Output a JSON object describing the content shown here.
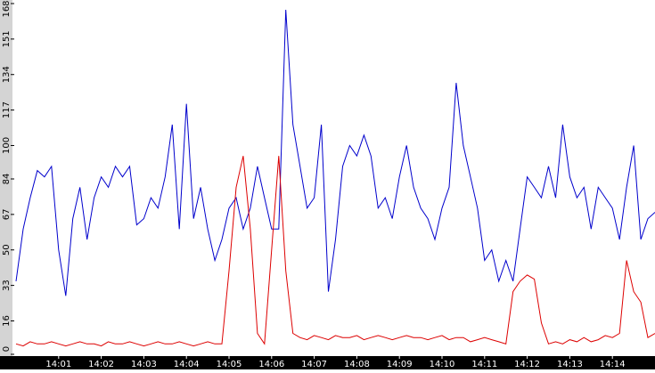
{
  "chart_data": {
    "type": "line",
    "categories": [
      null,
      null,
      null,
      null,
      null,
      null,
      "14:01",
      null,
      null,
      null,
      null,
      null,
      "14:02",
      null,
      null,
      null,
      null,
      null,
      "14:03",
      null,
      null,
      null,
      null,
      null,
      "14:04",
      null,
      null,
      null,
      null,
      null,
      "14:05",
      null,
      null,
      null,
      null,
      null,
      "14:06",
      null,
      null,
      null,
      null,
      null,
      "14:07",
      null,
      null,
      null,
      null,
      null,
      "14:08",
      null,
      null,
      null,
      null,
      null,
      "14:09",
      null,
      null,
      null,
      null,
      null,
      "14:10",
      null,
      null,
      null,
      null,
      null,
      "14:11",
      null,
      null,
      null,
      null,
      null,
      "14:12",
      null,
      null,
      null,
      null,
      null,
      "14:13",
      null,
      null,
      null,
      null,
      null,
      "14:14",
      null,
      null,
      null,
      null,
      null,
      null
    ],
    "series": [
      {
        "color": "#0000cc",
        "values": [
          35,
          60,
          75,
          88,
          85,
          90,
          50,
          28,
          65,
          80,
          55,
          75,
          85,
          80,
          90,
          85,
          90,
          62,
          65,
          75,
          70,
          85,
          110,
          60,
          120,
          65,
          80,
          60,
          45,
          55,
          70,
          75,
          60,
          70,
          90,
          75,
          60,
          60,
          165,
          110,
          90,
          70,
          75,
          110,
          30,
          55,
          90,
          100,
          95,
          105,
          95,
          70,
          75,
          65,
          85,
          100,
          80,
          70,
          65,
          55,
          70,
          80,
          130,
          100,
          85,
          70,
          45,
          50,
          35,
          45,
          35,
          60,
          85,
          80,
          75,
          90,
          75,
          110,
          85,
          75,
          80,
          60,
          80,
          75,
          70,
          55,
          80,
          100,
          55,
          65,
          68
        ]
      },
      {
        "color": "#dd0000",
        "values": [
          5,
          4,
          6,
          5,
          5,
          6,
          5,
          4,
          5,
          6,
          5,
          5,
          4,
          6,
          5,
          5,
          6,
          5,
          4,
          5,
          6,
          5,
          5,
          6,
          5,
          4,
          5,
          6,
          5,
          5,
          40,
          80,
          95,
          60,
          10,
          5,
          50,
          95,
          40,
          10,
          8,
          7,
          9,
          8,
          7,
          9,
          8,
          8,
          9,
          7,
          8,
          9,
          8,
          7,
          8,
          9,
          8,
          8,
          7,
          8,
          9,
          7,
          8,
          8,
          6,
          7,
          8,
          7,
          6,
          5,
          30,
          35,
          38,
          36,
          15,
          5,
          6,
          5,
          7,
          6,
          8,
          6,
          7,
          9,
          8,
          10,
          45,
          30,
          25,
          8,
          10
        ]
      }
    ],
    "ylim": [
      0,
      168
    ],
    "yticks": [
      0,
      16,
      33,
      50,
      67,
      84,
      100,
      117,
      134,
      151,
      168
    ]
  }
}
